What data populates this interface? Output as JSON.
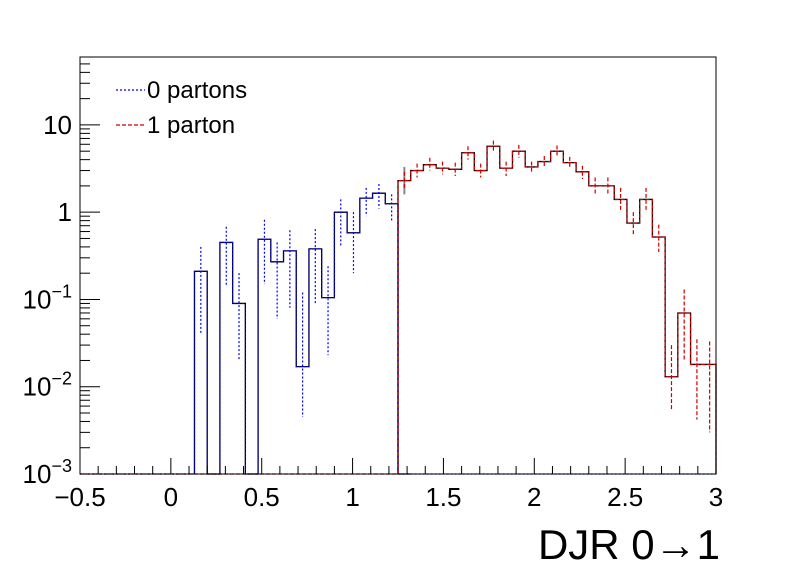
{
  "chart_data": {
    "type": "histogram",
    "xlabel": "DJR 0→1",
    "x_range": [
      -0.5,
      3.0
    ],
    "y_range": [
      0.001,
      60
    ],
    "y_scale": "log",
    "bin_width": 0.07,
    "legend_position": "top-left",
    "x_ticks": [
      "−0.5",
      "0",
      "0.5",
      "1",
      "1.5",
      "2",
      "2.5",
      "3"
    ],
    "x_tick_values": [
      -0.5,
      0,
      0.5,
      1,
      1.5,
      2,
      2.5,
      3
    ],
    "y_ticks": [
      {
        "value": 0.001,
        "base": "10",
        "exp": "−3"
      },
      {
        "value": 0.01,
        "base": "10",
        "exp": "−2"
      },
      {
        "value": 0.1,
        "base": "10",
        "exp": "−1"
      },
      {
        "value": 1,
        "base": "1",
        "exp": ""
      },
      {
        "value": 10,
        "base": "10",
        "exp": ""
      }
    ],
    "series": [
      {
        "name": "0 partons",
        "color": "#0000ff",
        "style": "dotted",
        "x_start": 0.13,
        "values": [
          0.21,
          0.001,
          0.45,
          0.09,
          0.001,
          0.49,
          0.27,
          0.36,
          0.017,
          0.38,
          0.105,
          1.0,
          0.58,
          1.45,
          1.65,
          1.25,
          0.001
        ],
        "errors_hi": [
          0.4,
          0,
          0.68,
          0.2,
          0,
          0.82,
          0.45,
          0.62,
          0.12,
          0.64,
          0.24,
          1.4,
          1.0,
          1.9,
          2.1,
          1.6,
          0
        ],
        "errors_lo": [
          0.04,
          0,
          0.14,
          0.02,
          0,
          0.15,
          0.06,
          0.08,
          0.0045,
          0.09,
          0.023,
          0.4,
          0.2,
          0.9,
          1.1,
          0.8,
          0
        ]
      },
      {
        "name": "1 parton",
        "color": "#cc0000",
        "style": "dashed",
        "x_start": 1.25,
        "values": [
          2.3,
          3.0,
          3.5,
          3.2,
          3.1,
          4.8,
          3.0,
          5.7,
          3.2,
          5.0,
          3.3,
          3.8,
          5.0,
          3.7,
          2.9,
          2.0,
          2.0,
          1.4,
          0.75,
          1.4,
          0.52,
          0.013,
          0.07,
          0.018,
          0.018
        ],
        "errors_hi": [
          2.9,
          3.6,
          4.2,
          3.8,
          3.7,
          5.7,
          3.6,
          6.6,
          3.8,
          5.9,
          3.8,
          4.4,
          5.8,
          4.3,
          3.4,
          2.5,
          2.5,
          1.9,
          1.0,
          1.9,
          0.72,
          0.03,
          0.13,
          0.035,
          0.033
        ],
        "errors_lo": [
          1.9,
          2.5,
          3.0,
          2.7,
          2.6,
          4.0,
          2.5,
          4.9,
          2.6,
          4.2,
          2.8,
          3.3,
          4.3,
          3.2,
          2.4,
          1.6,
          1.6,
          1.0,
          0.55,
          1.0,
          0.35,
          0.0055,
          0.02,
          0.0042,
          0.003
        ]
      }
    ],
    "sum_series": {
      "name": "",
      "color": "#000000",
      "highlight_color": "#888888",
      "x_start": 1.25,
      "values": [
        2.3,
        3.0,
        3.5,
        3.2,
        3.1,
        4.8,
        3.0,
        5.7,
        3.2,
        5.0,
        3.3,
        3.8,
        5.0,
        3.7,
        2.9,
        2.0,
        2.0,
        1.4,
        0.75,
        1.4,
        0.52,
        0.013,
        0.07,
        0.018,
        0.018
      ]
    }
  }
}
